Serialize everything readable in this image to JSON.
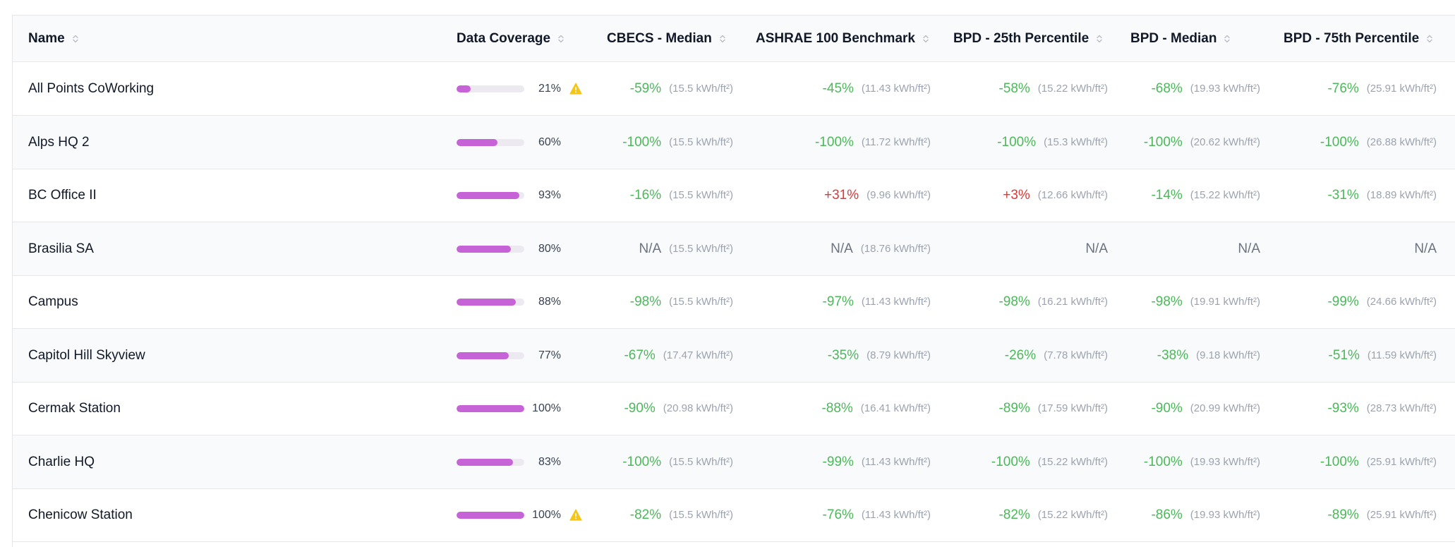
{
  "colors": {
    "bar_fill": "#c663d6",
    "bar_track": "#eceaf0",
    "negative": "#4cb85a",
    "positive": "#d93a3a",
    "warning": "#f5c518"
  },
  "columns": [
    {
      "label": "Name"
    },
    {
      "label": "Data Coverage"
    },
    {
      "label": "CBECS - Median"
    },
    {
      "label": "ASHRAE 100 Benchmark"
    },
    {
      "label": "BPD - 25th Percentile"
    },
    {
      "label": "BPD - Median"
    },
    {
      "label": "BPD - 75th Percentile"
    }
  ],
  "icons": {
    "sort": "sort-icon",
    "warning": "warning-icon"
  },
  "rows": [
    {
      "name": "All Points CoWorking",
      "coverage": 0.21,
      "coverage_label": "21%",
      "warning": true,
      "metrics": [
        {
          "value": "-59%",
          "bench": "(15.5 kWh/ft²)",
          "tone": "neg"
        },
        {
          "value": "-45%",
          "bench": "(11.43 kWh/ft²)",
          "tone": "neg"
        },
        {
          "value": "-58%",
          "bench": "(15.22 kWh/ft²)",
          "tone": "neg"
        },
        {
          "value": "-68%",
          "bench": "(19.93 kWh/ft²)",
          "tone": "neg"
        },
        {
          "value": "-76%",
          "bench": "(25.91 kWh/ft²)",
          "tone": "neg"
        }
      ]
    },
    {
      "name": "Alps HQ 2",
      "coverage": 0.6,
      "coverage_label": "60%",
      "warning": false,
      "metrics": [
        {
          "value": "-100%",
          "bench": "(15.5 kWh/ft²)",
          "tone": "neg"
        },
        {
          "value": "-100%",
          "bench": "(11.72 kWh/ft²)",
          "tone": "neg"
        },
        {
          "value": "-100%",
          "bench": "(15.3 kWh/ft²)",
          "tone": "neg"
        },
        {
          "value": "-100%",
          "bench": "(20.62 kWh/ft²)",
          "tone": "neg"
        },
        {
          "value": "-100%",
          "bench": "(26.88 kWh/ft²)",
          "tone": "neg"
        }
      ]
    },
    {
      "name": "BC Office II",
      "coverage": 0.93,
      "coverage_label": "93%",
      "warning": false,
      "metrics": [
        {
          "value": "-16%",
          "bench": "(15.5 kWh/ft²)",
          "tone": "neg"
        },
        {
          "value": "+31%",
          "bench": "(9.96 kWh/ft²)",
          "tone": "pos"
        },
        {
          "value": "+3%",
          "bench": "(12.66 kWh/ft²)",
          "tone": "pos"
        },
        {
          "value": "-14%",
          "bench": "(15.22 kWh/ft²)",
          "tone": "neg"
        },
        {
          "value": "-31%",
          "bench": "(18.89 kWh/ft²)",
          "tone": "neg"
        }
      ]
    },
    {
      "name": "Brasilia SA",
      "coverage": 0.8,
      "coverage_label": "80%",
      "warning": false,
      "metrics": [
        {
          "value": "N/A",
          "bench": "(15.5 kWh/ft²)",
          "tone": "na"
        },
        {
          "value": "N/A",
          "bench": "(18.76 kWh/ft²)",
          "tone": "na"
        },
        {
          "value": "N/A",
          "bench": "",
          "tone": "na"
        },
        {
          "value": "N/A",
          "bench": "",
          "tone": "na"
        },
        {
          "value": "N/A",
          "bench": "",
          "tone": "na"
        }
      ]
    },
    {
      "name": "Campus",
      "coverage": 0.88,
      "coverage_label": "88%",
      "warning": false,
      "metrics": [
        {
          "value": "-98%",
          "bench": "(15.5 kWh/ft²)",
          "tone": "neg"
        },
        {
          "value": "-97%",
          "bench": "(11.43 kWh/ft²)",
          "tone": "neg"
        },
        {
          "value": "-98%",
          "bench": "(16.21 kWh/ft²)",
          "tone": "neg"
        },
        {
          "value": "-98%",
          "bench": "(19.91 kWh/ft²)",
          "tone": "neg"
        },
        {
          "value": "-99%",
          "bench": "(24.66 kWh/ft²)",
          "tone": "neg"
        }
      ]
    },
    {
      "name": "Capitol Hill Skyview",
      "coverage": 0.77,
      "coverage_label": "77%",
      "warning": false,
      "metrics": [
        {
          "value": "-67%",
          "bench": "(17.47 kWh/ft²)",
          "tone": "neg"
        },
        {
          "value": "-35%",
          "bench": "(8.79 kWh/ft²)",
          "tone": "neg"
        },
        {
          "value": "-26%",
          "bench": "(7.78 kWh/ft²)",
          "tone": "neg"
        },
        {
          "value": "-38%",
          "bench": "(9.18 kWh/ft²)",
          "tone": "neg"
        },
        {
          "value": "-51%",
          "bench": "(11.59 kWh/ft²)",
          "tone": "neg"
        }
      ]
    },
    {
      "name": "Cermak Station",
      "coverage": 1.0,
      "coverage_label": "100%",
      "warning": false,
      "metrics": [
        {
          "value": "-90%",
          "bench": "(20.98 kWh/ft²)",
          "tone": "neg"
        },
        {
          "value": "-88%",
          "bench": "(16.41 kWh/ft²)",
          "tone": "neg"
        },
        {
          "value": "-89%",
          "bench": "(17.59 kWh/ft²)",
          "tone": "neg"
        },
        {
          "value": "-90%",
          "bench": "(20.99 kWh/ft²)",
          "tone": "neg"
        },
        {
          "value": "-93%",
          "bench": "(28.73 kWh/ft²)",
          "tone": "neg"
        }
      ]
    },
    {
      "name": "Charlie HQ",
      "coverage": 0.83,
      "coverage_label": "83%",
      "warning": false,
      "metrics": [
        {
          "value": "-100%",
          "bench": "(15.5 kWh/ft²)",
          "tone": "neg"
        },
        {
          "value": "-99%",
          "bench": "(11.43 kWh/ft²)",
          "tone": "neg"
        },
        {
          "value": "-100%",
          "bench": "(15.22 kWh/ft²)",
          "tone": "neg"
        },
        {
          "value": "-100%",
          "bench": "(19.93 kWh/ft²)",
          "tone": "neg"
        },
        {
          "value": "-100%",
          "bench": "(25.91 kWh/ft²)",
          "tone": "neg"
        }
      ]
    },
    {
      "name": "Chenicow Station",
      "coverage": 1.0,
      "coverage_label": "100%",
      "warning": true,
      "metrics": [
        {
          "value": "-82%",
          "bench": "(15.5 kWh/ft²)",
          "tone": "neg"
        },
        {
          "value": "-76%",
          "bench": "(11.43 kWh/ft²)",
          "tone": "neg"
        },
        {
          "value": "-82%",
          "bench": "(15.22 kWh/ft²)",
          "tone": "neg"
        },
        {
          "value": "-86%",
          "bench": "(19.93 kWh/ft²)",
          "tone": "neg"
        },
        {
          "value": "-89%",
          "bench": "(25.91 kWh/ft²)",
          "tone": "neg"
        }
      ]
    }
  ]
}
